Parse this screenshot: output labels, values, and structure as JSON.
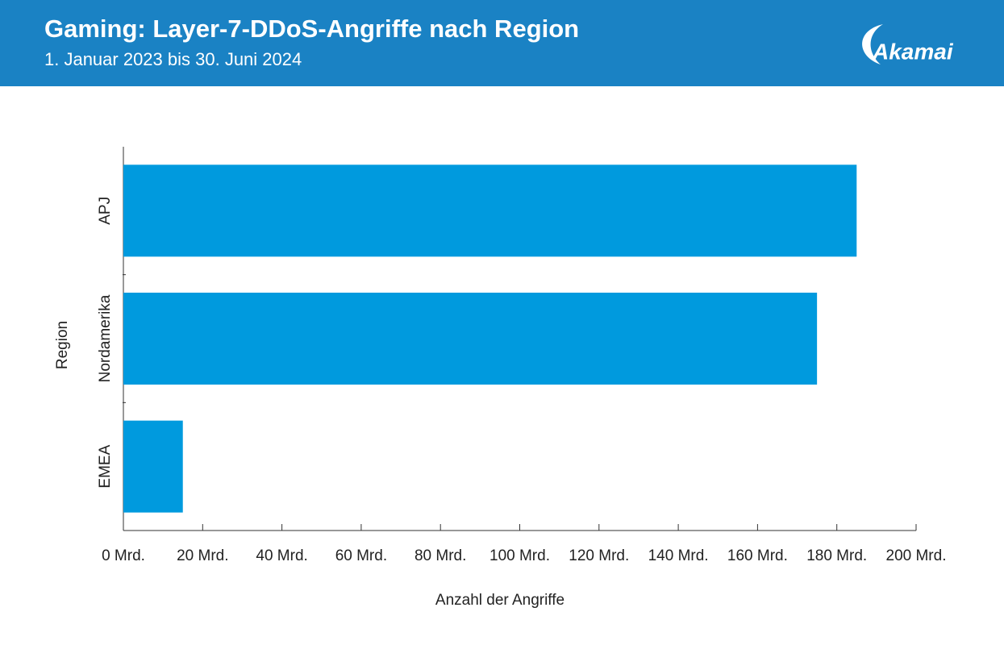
{
  "header": {
    "logo": "Akamai"
  },
  "chart_data": {
    "type": "hbar",
    "title": "Gaming: Layer-7-DDoS-Angriffe nach Region",
    "subtitle": "1. Januar 2023 bis 30. Juni 2024",
    "x_label": "Anzahl der Angriffe",
    "y_label": "Region",
    "categories": [
      "APJ",
      "Nordamerika",
      "EMEA"
    ],
    "values": [
      185,
      175,
      15
    ],
    "color": "#009ade",
    "xlim": [
      0,
      200
    ],
    "xticks": [
      {
        "value": 0,
        "label": "0 Mrd."
      },
      {
        "value": 20,
        "label": "20 Mrd."
      },
      {
        "value": 40,
        "label": "40 Mrd."
      },
      {
        "value": 60,
        "label": "60 Mrd."
      },
      {
        "value": 80,
        "label": "80 Mrd."
      },
      {
        "value": 100,
        "label": "100 Mrd."
      },
      {
        "value": 120,
        "label": "120 Mrd."
      },
      {
        "value": 140,
        "label": "140 Mrd."
      },
      {
        "value": 160,
        "label": "160 Mrd."
      },
      {
        "value": 180,
        "label": "180 Mrd."
      },
      {
        "value": 200,
        "label": "200 Mrd."
      }
    ],
    "grid": false
  }
}
